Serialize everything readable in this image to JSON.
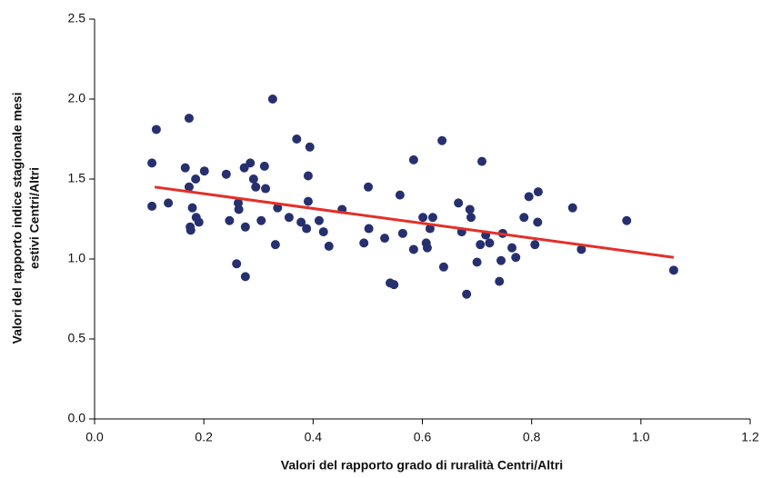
{
  "chart_data": {
    "type": "scatter",
    "xlabel": "Valori del rapporto grado di ruralità Centri/Altri",
    "ylabel": [
      "Valori del rapporto indice stagionale mesi",
      "estivi Centri/Altri"
    ],
    "xlim": [
      0,
      1.2
    ],
    "xticks": [
      {
        "value": 0,
        "label": "0.0"
      },
      0.2,
      0.4,
      0.6,
      0.8,
      {
        "value": 1,
        "label": "1.0"
      },
      1.2
    ],
    "ylim": [
      0,
      2.5
    ],
    "yticks": [
      {
        "value": 0,
        "label": "0.0"
      },
      0.5,
      {
        "value": 1,
        "label": "1.0"
      },
      1.5,
      {
        "value": 2,
        "label": "2.0"
      },
      2.5
    ],
    "series": [
      {
        "color": "#26306f",
        "x": [
          0.105,
          0.105,
          0.113,
          0.135,
          0.166,
          0.173,
          0.173,
          0.175,
          0.176,
          0.179,
          0.185,
          0.186,
          0.191,
          0.201,
          0.241,
          0.247,
          0.26,
          0.263,
          0.264,
          0.274,
          0.276,
          0.276,
          0.285,
          0.291,
          0.295,
          0.305,
          0.311,
          0.313,
          0.326,
          0.331,
          0.335,
          0.356,
          0.37,
          0.378,
          0.388,
          0.391,
          0.391,
          0.394,
          0.411,
          0.419,
          0.429,
          0.453,
          0.493,
          0.501,
          0.502,
          0.531,
          0.541,
          0.548,
          0.559,
          0.564,
          0.584,
          0.584,
          0.601,
          0.607,
          0.609,
          0.614,
          0.619,
          0.636,
          0.639,
          0.666,
          0.672,
          0.681,
          0.687,
          0.689,
          0.7,
          0.706,
          0.709,
          0.716,
          0.723,
          0.741,
          0.744,
          0.747,
          0.764,
          0.771,
          0.786,
          0.795,
          0.806,
          0.811,
          0.812,
          0.875,
          0.891,
          0.974,
          1.06
        ],
        "y": [
          1.6,
          1.33,
          1.81,
          1.35,
          1.57,
          1.88,
          1.45,
          1.2,
          1.18,
          1.32,
          1.5,
          1.26,
          1.23,
          1.55,
          1.53,
          1.24,
          0.97,
          1.35,
          1.31,
          1.57,
          0.89,
          1.2,
          1.6,
          1.5,
          1.45,
          1.24,
          1.58,
          1.44,
          2.0,
          1.09,
          1.32,
          1.26,
          1.75,
          1.23,
          1.19,
          1.52,
          1.36,
          1.7,
          1.24,
          1.17,
          1.08,
          1.31,
          1.1,
          1.45,
          1.19,
          1.13,
          0.85,
          0.84,
          1.4,
          1.16,
          1.62,
          1.06,
          1.26,
          1.1,
          1.07,
          1.19,
          1.26,
          1.74,
          0.95,
          1.35,
          1.17,
          0.78,
          1.31,
          1.26,
          0.98,
          1.09,
          1.61,
          1.15,
          1.1,
          0.86,
          0.99,
          1.16,
          1.07,
          1.01,
          1.26,
          1.39,
          1.09,
          1.23,
          1.42,
          1.32,
          1.06,
          1.24,
          0.93
        ]
      }
    ],
    "trendline": {
      "color": "#e2302a",
      "x": [
        0.11,
        1.06
      ],
      "y": [
        1.45,
        1.01
      ]
    }
  }
}
